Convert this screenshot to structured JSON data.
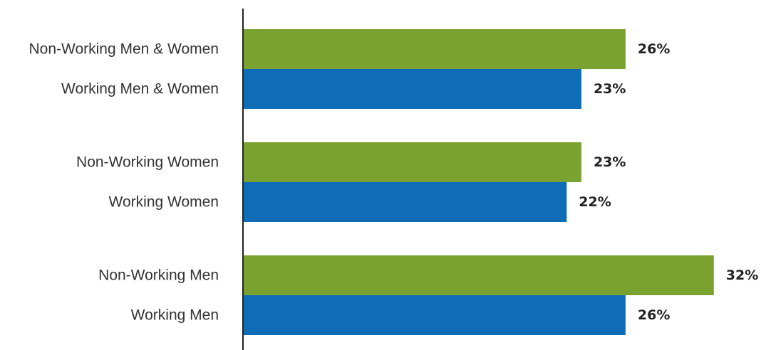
{
  "chart_data": {
    "type": "bar",
    "orientation": "horizontal",
    "categories": [
      "Non-Working Men & Women",
      "Working Men & Women",
      "Non-Working Women",
      "Working Women",
      "Non-Working Men",
      "Working Men"
    ],
    "values": [
      26,
      23,
      23,
      22,
      32,
      26
    ],
    "value_labels": [
      "26%",
      "23%",
      "23%",
      "22%",
      "32%",
      "26%"
    ],
    "bar_colors": [
      "#7aa230",
      "#0f6db8",
      "#7aa230",
      "#0f6db8",
      "#7aa230",
      "#0f6db8"
    ],
    "groups": [
      [
        "Non-Working Men & Women",
        "Working Men & Women"
      ],
      [
        "Non-Working Women",
        "Working Women"
      ],
      [
        "Non-Working Men",
        "Working Men"
      ]
    ],
    "unit": "%",
    "xlim": [
      0,
      32
    ],
    "grid": false,
    "legend": "none",
    "title": "",
    "xlabel": "",
    "ylabel": ""
  },
  "colors": {
    "non_working": "#7aa230",
    "working": "#0f6db8",
    "axis": "#222222",
    "label_text": "#333333",
    "value_text": "#222222"
  }
}
